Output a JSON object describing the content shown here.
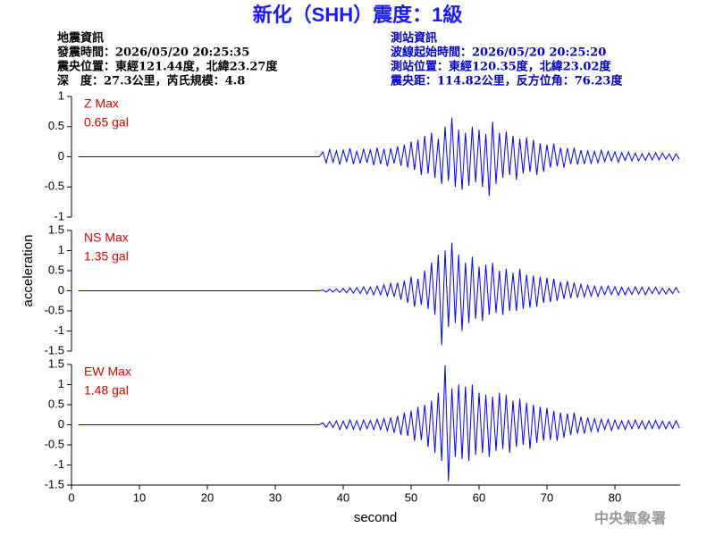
{
  "title": "新化（SHH）震度：1級",
  "info_left": [
    "地震資訊",
    "發震時間：2026/05/20 20:25:35",
    "震央位置：東經121.44度，北緯23.27度",
    "深　度：27.3公里，芮氏規模：4.8"
  ],
  "info_right": [
    "測站資訊",
    "波線起始時間：2026/05/20 20:25:20",
    "測站位置：東經120.35度，北緯23.02度",
    "震央距：114.82公里，反方位角：76.23度"
  ],
  "footer": "中央氣象署",
  "chart_data": {
    "type": "line",
    "xlabel": "second",
    "ylabel": "acceleration",
    "xlim": [
      0,
      89.6
    ],
    "xticks": [
      0,
      10,
      20,
      30,
      40,
      50,
      60,
      70,
      80
    ],
    "x": [
      1,
      36.5,
      37,
      37.5,
      38,
      38.5,
      39,
      39.5,
      40,
      40.5,
      41,
      41.5,
      42,
      42.5,
      43,
      43.5,
      44,
      44.5,
      45,
      45.5,
      46,
      46.5,
      47,
      47.5,
      48,
      48.5,
      49,
      49.5,
      50,
      50.5,
      51,
      51.5,
      52,
      52.5,
      53,
      53.5,
      54,
      54.5,
      55,
      55.5,
      56,
      56.5,
      57,
      57.5,
      58,
      58.5,
      59,
      59.5,
      60,
      60.5,
      61,
      61.5,
      62,
      62.5,
      63,
      63.5,
      64,
      64.5,
      65,
      65.5,
      66,
      66.5,
      67,
      67.5,
      68,
      68.5,
      69,
      69.5,
      70,
      70.5,
      71,
      71.5,
      72,
      72.5,
      73,
      73.5,
      74,
      74.5,
      75,
      75.5,
      76,
      76.5,
      77,
      77.5,
      78,
      78.5,
      79,
      79.5,
      80,
      80.5,
      81,
      81.5,
      82,
      82.5,
      83,
      83.5,
      84,
      84.5,
      85,
      85.5,
      86,
      86.5,
      87,
      87.5,
      88,
      88.5,
      89,
      89.5
    ],
    "panels": [
      {
        "annotation": "Z Max",
        "max_label": "0.65 gal",
        "color": "#0000ff",
        "ylim": [
          -1,
          1
        ],
        "yticks": [
          1,
          0.5,
          0,
          -0.5,
          -1
        ],
        "values": [
          0,
          0,
          0.08,
          -0.1,
          0.12,
          -0.09,
          0.1,
          -0.13,
          0.11,
          -0.08,
          0.14,
          -0.12,
          0.09,
          -0.11,
          0.13,
          -0.1,
          0.12,
          -0.14,
          0.15,
          -0.12,
          0.13,
          -0.16,
          0.14,
          -0.11,
          0.17,
          -0.15,
          0.2,
          -0.18,
          0.25,
          -0.22,
          0.28,
          -0.3,
          0.35,
          -0.28,
          0.4,
          -0.35,
          0.3,
          -0.45,
          0.5,
          -0.4,
          0.65,
          -0.5,
          0.45,
          -0.55,
          0.4,
          -0.48,
          0.5,
          -0.42,
          0.45,
          -0.5,
          0.38,
          -0.65,
          0.58,
          -0.45,
          0.4,
          -0.35,
          0.42,
          -0.3,
          0.35,
          -0.38,
          0.3,
          -0.28,
          0.32,
          -0.25,
          0.28,
          -0.3,
          0.22,
          -0.25,
          0.2,
          -0.18,
          0.22,
          -0.16,
          0.15,
          -0.18,
          0.14,
          -0.12,
          0.15,
          -0.13,
          0.11,
          -0.12,
          0.1,
          -0.11,
          0.09,
          -0.1,
          0.11,
          -0.08,
          0.09,
          -0.07,
          0.08,
          -0.09,
          0.07,
          -0.06,
          0.08,
          -0.07,
          0.06,
          -0.07,
          0.05,
          -0.06,
          0.06,
          -0.05,
          0.07,
          -0.05,
          0.06,
          -0.04,
          0.05,
          -0.06,
          0.05,
          -0.04
        ]
      },
      {
        "annotation": "NS Max",
        "max_label": "1.35 gal",
        "color": "#0000ff",
        "ylim": [
          -1.5,
          1.5
        ],
        "yticks": [
          1.5,
          1,
          0.5,
          0,
          -0.5,
          -1,
          -1.5
        ],
        "values": [
          0,
          0,
          0.02,
          -0.03,
          0.04,
          -0.03,
          0.05,
          -0.04,
          0.06,
          -0.05,
          0.07,
          -0.06,
          0.08,
          -0.07,
          0.1,
          -0.08,
          0.09,
          -0.1,
          0.12,
          -0.1,
          0.15,
          -0.13,
          0.18,
          -0.15,
          0.2,
          -0.22,
          0.25,
          -0.3,
          0.35,
          -0.4,
          0.3,
          -0.35,
          0.5,
          -0.45,
          0.7,
          -0.6,
          0.9,
          -1.35,
          1.0,
          -0.9,
          1.2,
          -0.8,
          0.9,
          -1.0,
          0.7,
          -0.8,
          0.85,
          -0.7,
          0.6,
          -0.75,
          0.65,
          -0.6,
          0.7,
          -0.55,
          0.5,
          -0.6,
          0.55,
          -0.5,
          0.45,
          -0.5,
          0.55,
          -0.45,
          0.4,
          -0.42,
          0.38,
          -0.4,
          0.35,
          -0.3,
          0.32,
          -0.28,
          0.3,
          -0.25,
          0.22,
          -0.2,
          0.24,
          -0.18,
          0.2,
          -0.17,
          0.16,
          -0.15,
          0.14,
          -0.13,
          0.12,
          -0.14,
          0.11,
          -0.1,
          0.12,
          -0.09,
          0.1,
          -0.11,
          0.09,
          -0.1,
          0.08,
          -0.09,
          0.1,
          -0.08,
          0.09,
          -0.1,
          0.08,
          -0.07,
          0.09,
          -0.08,
          0.07,
          -0.08,
          0.06,
          -0.07,
          0.08,
          -0.06
        ]
      },
      {
        "annotation": "EW Max",
        "max_label": "1.48 gal",
        "color": "#0000ff",
        "ylim": [
          -1.5,
          1.5
        ],
        "yticks": [
          1.5,
          1,
          0.5,
          0,
          -0.5,
          -1,
          -1.5
        ],
        "values": [
          0,
          0,
          0.05,
          -0.06,
          0.08,
          -0.07,
          0.1,
          -0.12,
          0.09,
          -0.1,
          0.12,
          -0.11,
          0.1,
          -0.13,
          0.12,
          -0.1,
          0.11,
          -0.12,
          0.14,
          -0.12,
          0.16,
          -0.15,
          0.18,
          -0.2,
          0.22,
          -0.25,
          0.3,
          -0.28,
          0.35,
          -0.4,
          0.45,
          -0.38,
          0.5,
          -0.55,
          0.6,
          -0.7,
          0.8,
          -0.9,
          1.48,
          -1.4,
          0.9,
          -0.8,
          1.0,
          -0.85,
          0.95,
          -0.9,
          1.0,
          -0.75,
          0.8,
          -0.7,
          0.75,
          -0.8,
          0.7,
          -0.65,
          0.8,
          -0.6,
          0.75,
          -0.7,
          0.6,
          -0.55,
          0.65,
          -0.5,
          0.55,
          -0.6,
          0.5,
          -0.45,
          0.45,
          -0.4,
          0.42,
          -0.38,
          0.35,
          -0.4,
          0.3,
          -0.32,
          0.28,
          -0.25,
          0.3,
          -0.22,
          0.2,
          -0.22,
          0.18,
          -0.16,
          0.15,
          -0.17,
          0.14,
          -0.12,
          0.13,
          -0.14,
          0.12,
          -0.11,
          0.1,
          -0.12,
          0.11,
          -0.1,
          0.12,
          -0.09,
          0.1,
          -0.11,
          0.1,
          -0.09,
          0.11,
          -0.1,
          0.09,
          -0.1,
          0.08,
          -0.09,
          0.1,
          -0.08
        ]
      }
    ]
  }
}
